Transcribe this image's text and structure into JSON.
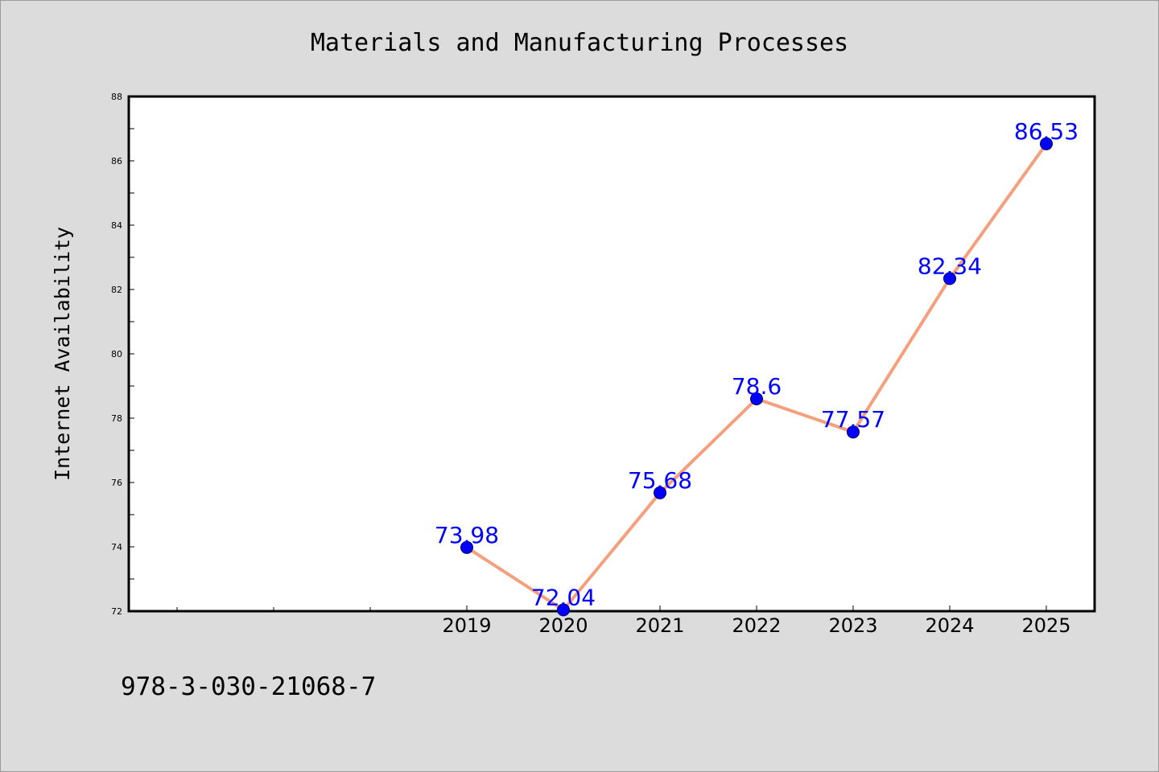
{
  "chart_data": {
    "type": "line",
    "title": "Materials and Manufacturing Processes",
    "xlabel": "",
    "ylabel": "Internet Availability",
    "categories": [
      "2019",
      "2020",
      "2021",
      "2022",
      "2023",
      "2024",
      "2025"
    ],
    "x_axis_range": [
      2015.5,
      2025.5
    ],
    "series": [
      {
        "values": [
          73.98,
          72.04,
          75.68,
          78.6,
          77.57,
          82.34,
          86.53
        ],
        "data_labels": [
          "73.98",
          "72.04",
          "75.68",
          "78.6",
          "77.57",
          "82.34",
          "86.53"
        ],
        "line_color": "#f4a07c",
        "marker_color": "#0000ff",
        "label_color": "#0000ff"
      }
    ],
    "ylim": [
      72,
      88
    ],
    "yticks": [
      72,
      74,
      76,
      78,
      80,
      82,
      84,
      86,
      88
    ],
    "ytick_labels": [
      "72",
      "74",
      "76",
      "78",
      "80",
      "82",
      "84",
      "86",
      "88"
    ],
    "grid": false,
    "legend": "none"
  },
  "footer": {
    "isbn": "978-3-030-21068-7"
  },
  "colors": {
    "background": "#dcdcdc",
    "plot_area": "#ffffff",
    "axis": "#000000"
  }
}
